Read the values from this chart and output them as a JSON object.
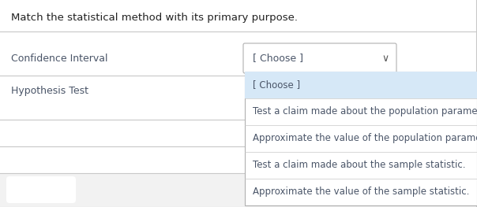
{
  "title": "Match the statistical method with its primary purpose.",
  "background_color": "#ffffff",
  "separator_color": "#c8c8c8",
  "bottom_row_bg": "#f2f2f2",
  "methods": [
    "Confidence Interval",
    "Hypothesis Test"
  ],
  "dropdown_label": "[ Choose ]",
  "dropdown_border_color": "#b0b0b0",
  "dropdown_bg": "#ffffff",
  "menu_items": [
    "[ Choose ]",
    "Test a claim made about the population parameter.",
    "Approximate the value of the population parameter.",
    "Test a claim made about the sample statistic.",
    "Approximate the value of the sample statistic."
  ],
  "menu_highlight_color": "#d6e8f7",
  "menu_border_color": "#b0b0b0",
  "menu_bg": "#ffffff",
  "text_color": "#4a5568",
  "title_color": "#222222",
  "chevron_color": "#555555",
  "pill_color": "#ffffff",
  "pill_bg": "#f2f2f2",
  "figw": 6.04,
  "figh": 2.63,
  "dpi": 100
}
